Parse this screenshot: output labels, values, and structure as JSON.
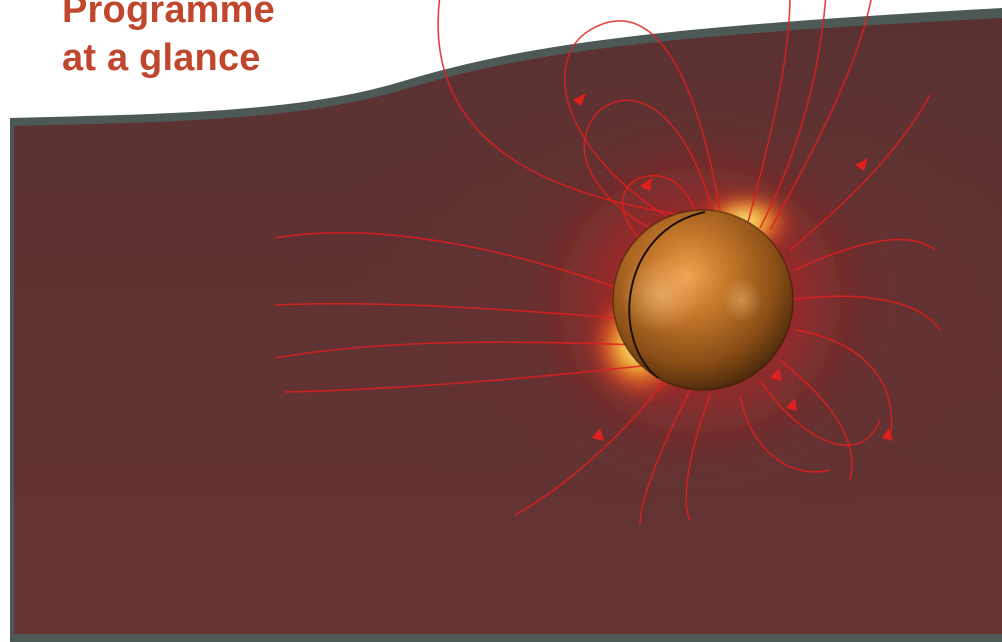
{
  "heading": {
    "line1": "Programme",
    "line2": "at a glance"
  },
  "colors": {
    "heading": "#c0472e",
    "panel": "#5c3131",
    "border": "#4d5957",
    "field_lines": "#e01f1f",
    "glow_core": "#ffe347",
    "sphere": "#b86f1c"
  },
  "illustration": {
    "subject": "metal-sphere-with-electric-field-lines"
  }
}
